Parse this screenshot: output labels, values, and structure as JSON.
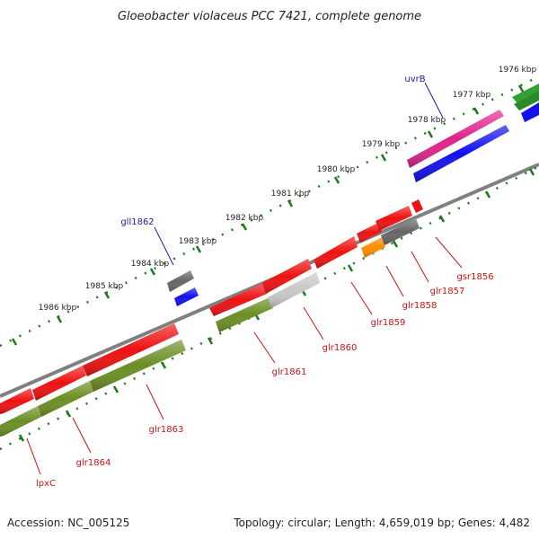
{
  "title": "Gloeobacter violaceus PCC 7421, complete genome",
  "footer": {
    "accession": "Accession: NC_005125",
    "summary": "Topology: circular; Length: 4,659,019 bp; Genes: 4,482"
  },
  "colors": {
    "red": "#ee1111",
    "olive": "#6b8e23",
    "gray": "#7a7a7a",
    "blue": "#1111ee",
    "pink": "#e0238c",
    "green": "#33a033",
    "orange": "#ff8c00",
    "silver": "#c8c8c8",
    "backbone": "#808080",
    "tick_green": "#1a7a1a",
    "forward_label": "#1a1aa8",
    "reverse_label": "#cc1111"
  },
  "tick_labels": [
    "1976 kbp",
    "1977 kbp",
    "1978 kbp",
    "1979 kbp",
    "1980 kbp",
    "1981 kbp",
    "1982 kbp",
    "1983 kbp",
    "1984 kbp",
    "1985 kbp",
    "1986 kbp"
  ],
  "forward_gene_labels": [
    "uvrB",
    "gll1862"
  ],
  "reverse_gene_labels": [
    "gsr1856",
    "glr1857",
    "glr1858",
    "glr1859",
    "glr1860",
    "glr1861",
    "glr1863",
    "glr1864",
    "lpxC"
  ]
}
